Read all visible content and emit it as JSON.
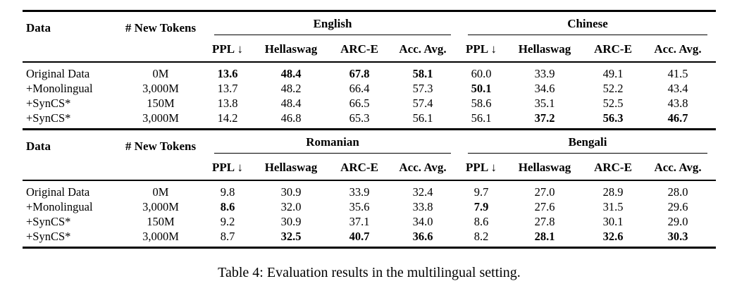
{
  "caption": "Table 4: Evaluation results in the multilingual setting.",
  "row_headers": {
    "data": "Data",
    "tokens": "# New Tokens"
  },
  "sections": [
    {
      "languages": [
        "English",
        "Chinese"
      ],
      "metrics": [
        "PPL ↓",
        "Hellaswag",
        "ARC-E",
        "Acc. Avg."
      ],
      "rows": [
        {
          "label": "Original Data",
          "tokens": "0M",
          "values": [
            "13.6",
            "48.4",
            "67.8",
            "58.1",
            "60.0",
            "33.9",
            "49.1",
            "41.5"
          ],
          "bold": [
            0,
            1,
            2,
            3
          ]
        },
        {
          "label": "+Monolingual",
          "tokens": "3,000M",
          "values": [
            "13.7",
            "48.2",
            "66.4",
            "57.3",
            "50.1",
            "34.6",
            "52.2",
            "43.4"
          ],
          "bold": [
            4
          ]
        },
        {
          "label": "+SynCS*",
          "tokens": "150M",
          "values": [
            "13.8",
            "48.4",
            "66.5",
            "57.4",
            "58.6",
            "35.1",
            "52.5",
            "43.8"
          ],
          "bold": []
        },
        {
          "label": "+SynCS*",
          "tokens": "3,000M",
          "values": [
            "14.2",
            "46.8",
            "65.3",
            "56.1",
            "56.1",
            "37.2",
            "56.3",
            "46.7"
          ],
          "bold": [
            5,
            6,
            7
          ]
        }
      ]
    },
    {
      "languages": [
        "Romanian",
        "Bengali"
      ],
      "metrics": [
        "PPL ↓",
        "Hellaswag",
        "ARC-E",
        "Acc. Avg."
      ],
      "rows": [
        {
          "label": "Original Data",
          "tokens": "0M",
          "values": [
            "9.8",
            "30.9",
            "33.9",
            "32.4",
            "9.7",
            "27.0",
            "28.9",
            "28.0"
          ],
          "bold": []
        },
        {
          "label": "+Monolingual",
          "tokens": "3,000M",
          "values": [
            "8.6",
            "32.0",
            "35.6",
            "33.8",
            "7.9",
            "27.6",
            "31.5",
            "29.6"
          ],
          "bold": [
            0,
            4
          ]
        },
        {
          "label": "+SynCS*",
          "tokens": "150M",
          "values": [
            "9.2",
            "30.9",
            "37.1",
            "34.0",
            "8.6",
            "27.8",
            "30.1",
            "29.0"
          ],
          "bold": []
        },
        {
          "label": "+SynCS*",
          "tokens": "3,000M",
          "values": [
            "8.7",
            "32.5",
            "40.7",
            "36.6",
            "8.2",
            "28.1",
            "32.6",
            "30.3"
          ],
          "bold": [
            1,
            2,
            3,
            5,
            6,
            7
          ]
        }
      ]
    }
  ]
}
